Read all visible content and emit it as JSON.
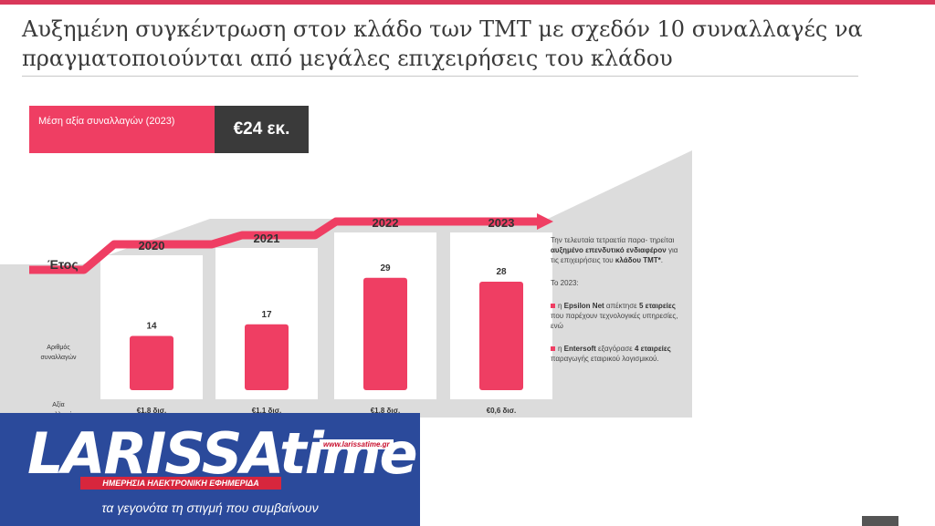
{
  "title": "Αυξημένη συγκέντρωση στον κλάδο των TMT με σχεδόν 10 συναλλαγές να πραγματοποιούνται από μεγάλες επιχειρήσεις του κλάδου",
  "avg": {
    "label": "Μέση αξία συναλλαγών (2023)",
    "value": "€24 εκ."
  },
  "chart_data": {
    "type": "bar",
    "categories": [
      "2020",
      "2021",
      "2022",
      "2023"
    ],
    "values": [
      14,
      17,
      29,
      28
    ],
    "deal_values": [
      "€1,8 δισ.",
      "€1,1 δισ.",
      "€1,8 δισ.",
      "€0,6 δισ."
    ],
    "year_axis_label": "Έτος",
    "bar_row_label": "Αριθμός συναλλαγών",
    "value_row_label": "Αξία συναλλαγών",
    "colors": {
      "bar": "#ef3e63",
      "arrow": "#ef3e63",
      "panel": "#dcdcdc",
      "card": "#ffffff"
    }
  },
  "side": {
    "p1_pre": "Την τελευταία τετραετία παρα- τηρείται ",
    "p1_bold1": "αυξημένο επενδυτικό ενδιαφέρον",
    "p1_mid": " για τις επιχειρήσεις του ",
    "p1_bold2": "κλάδου TMT*",
    "p1_end": ".",
    "p2": "Το 2023:",
    "b1_pre": "η ",
    "b1_bold1": "Epsilon Net",
    "b1_mid": " απέκτησε ",
    "b1_bold2": "5 εταιρείες",
    "b1_end": " που παρέχουν τεχνολογικές υπηρεσίες, ενώ",
    "b2_pre": "η ",
    "b2_bold1": "Entersoft",
    "b2_mid": " εξαγόρασε ",
    "b2_bold2": "4 εταιρείες",
    "b2_end": " παραγωγής εταιρικού λογισμικού."
  },
  "logo": {
    "word": "LARISSAtime",
    "url": "www.larissatime.gr",
    "ribbon": "ΗΜΕΡΗΣΙΑ ΗΛΕΚΤΡΟΝΙΚΗ ΕΦΗΜΕΡΙΔΑ",
    "tagline": "τα γεγονότα τη στιγμή που συμβαίνουν"
  }
}
